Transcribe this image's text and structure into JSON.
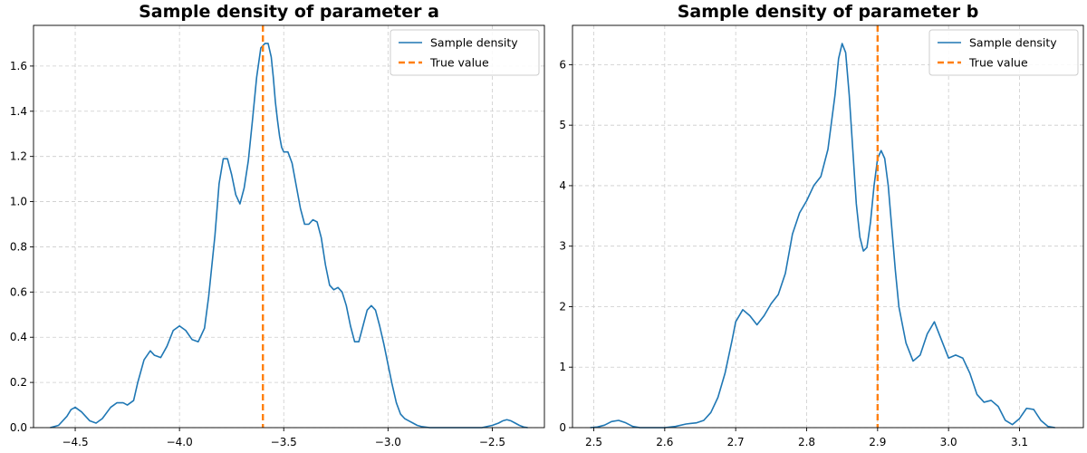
{
  "figure": {
    "background": "#ffffff"
  },
  "colors": {
    "density": "#1f77b4",
    "true_value": "#ff7f0e",
    "grid": "#cccccc",
    "axis": "#000000"
  },
  "chart_data": [
    {
      "type": "line",
      "title": "Sample density of parameter a",
      "xlabel": "",
      "ylabel": "",
      "xlim": [
        -4.7,
        -2.25
      ],
      "ylim": [
        0,
        1.78
      ],
      "xticks": [
        -4.5,
        -4.0,
        -3.5,
        -3.0,
        -2.5
      ],
      "xtick_labels": [
        "−4.5",
        "−4.0",
        "−3.5",
        "−3.0",
        "−2.5"
      ],
      "yticks": [
        0.0,
        0.2,
        0.4,
        0.6,
        0.8,
        1.0,
        1.2,
        1.4,
        1.6
      ],
      "ytick_labels": [
        "0.0",
        "0.2",
        "0.4",
        "0.6",
        "0.8",
        "1.0",
        "1.2",
        "1.4",
        "1.6"
      ],
      "grid": true,
      "legend": {
        "position": "top-right",
        "entries": [
          "Sample density",
          "True value"
        ]
      },
      "series": [
        {
          "name": "Sample density",
          "style": "solid",
          "x": [
            -4.62,
            -4.58,
            -4.54,
            -4.52,
            -4.5,
            -4.47,
            -4.43,
            -4.4,
            -4.37,
            -4.33,
            -4.3,
            -4.27,
            -4.25,
            -4.22,
            -4.2,
            -4.17,
            -4.14,
            -4.12,
            -4.09,
            -4.06,
            -4.03,
            -4.0,
            -3.97,
            -3.94,
            -3.91,
            -3.88,
            -3.86,
            -3.83,
            -3.81,
            -3.79,
            -3.77,
            -3.75,
            -3.73,
            -3.71,
            -3.69,
            -3.67,
            -3.65,
            -3.63,
            -3.61,
            -3.59,
            -3.575,
            -3.56,
            -3.55,
            -3.54,
            -3.53,
            -3.52,
            -3.51,
            -3.5,
            -3.49,
            -3.48,
            -3.46,
            -3.44,
            -3.42,
            -3.4,
            -3.38,
            -3.36,
            -3.34,
            -3.32,
            -3.3,
            -3.28,
            -3.26,
            -3.24,
            -3.22,
            -3.2,
            -3.18,
            -3.16,
            -3.14,
            -3.12,
            -3.1,
            -3.08,
            -3.06,
            -3.04,
            -3.02,
            -3.0,
            -2.98,
            -2.96,
            -2.94,
            -2.92,
            -2.9,
            -2.88,
            -2.86,
            -2.84,
            -2.8,
            -2.76,
            -2.72,
            -2.68,
            -2.64,
            -2.6,
            -2.55,
            -2.5,
            -2.47,
            -2.45,
            -2.43,
            -2.41,
            -2.39,
            -2.37,
            -2.35,
            -2.33
          ],
          "y": [
            0.0,
            0.01,
            0.05,
            0.08,
            0.09,
            0.07,
            0.03,
            0.02,
            0.04,
            0.09,
            0.11,
            0.11,
            0.1,
            0.12,
            0.2,
            0.3,
            0.34,
            0.32,
            0.31,
            0.36,
            0.43,
            0.45,
            0.43,
            0.39,
            0.38,
            0.44,
            0.58,
            0.85,
            1.08,
            1.19,
            1.19,
            1.12,
            1.03,
            0.99,
            1.06,
            1.18,
            1.36,
            1.55,
            1.68,
            1.7,
            1.7,
            1.64,
            1.55,
            1.44,
            1.36,
            1.29,
            1.24,
            1.22,
            1.22,
            1.22,
            1.17,
            1.07,
            0.97,
            0.9,
            0.9,
            0.92,
            0.91,
            0.84,
            0.72,
            0.63,
            0.61,
            0.62,
            0.6,
            0.54,
            0.45,
            0.38,
            0.38,
            0.45,
            0.52,
            0.54,
            0.52,
            0.45,
            0.37,
            0.28,
            0.19,
            0.11,
            0.06,
            0.04,
            0.03,
            0.02,
            0.01,
            0.005,
            0.0,
            0.0,
            0.0,
            0.0,
            0.0,
            0.0,
            0.0,
            0.01,
            0.02,
            0.03,
            0.035,
            0.03,
            0.02,
            0.01,
            0.003,
            0.0
          ]
        },
        {
          "name": "True value",
          "style": "dashed",
          "vline": -3.6
        }
      ]
    },
    {
      "type": "line",
      "title": "Sample density of parameter b",
      "xlabel": "",
      "ylabel": "",
      "xlim": [
        2.47,
        3.19
      ],
      "ylim": [
        0,
        6.65
      ],
      "xticks": [
        2.5,
        2.6,
        2.7,
        2.8,
        2.9,
        3.0,
        3.1
      ],
      "xtick_labels": [
        "2.5",
        "2.6",
        "2.7",
        "2.8",
        "2.9",
        "3.0",
        "3.1"
      ],
      "yticks": [
        0,
        1,
        2,
        3,
        4,
        5,
        6
      ],
      "ytick_labels": [
        "0",
        "1",
        "2",
        "3",
        "4",
        "5",
        "6"
      ],
      "grid": true,
      "legend": {
        "position": "top-right",
        "entries": [
          "Sample density",
          "True value"
        ]
      },
      "series": [
        {
          "name": "Sample density",
          "style": "solid",
          "x": [
            2.495,
            2.505,
            2.515,
            2.525,
            2.535,
            2.545,
            2.555,
            2.565,
            2.58,
            2.6,
            2.615,
            2.63,
            2.645,
            2.655,
            2.665,
            2.675,
            2.685,
            2.695,
            2.7,
            2.71,
            2.72,
            2.73,
            2.74,
            2.75,
            2.76,
            2.77,
            2.78,
            2.79,
            2.8,
            2.81,
            2.82,
            2.83,
            2.84,
            2.845,
            2.85,
            2.855,
            2.86,
            2.865,
            2.87,
            2.875,
            2.88,
            2.885,
            2.89,
            2.895,
            2.9,
            2.905,
            2.91,
            2.915,
            2.92,
            2.925,
            2.93,
            2.94,
            2.95,
            2.96,
            2.97,
            2.98,
            2.99,
            3.0,
            3.01,
            3.02,
            3.03,
            3.04,
            3.05,
            3.06,
            3.07,
            3.08,
            3.09,
            3.1,
            3.11,
            3.12,
            3.13,
            3.14,
            3.15
          ],
          "y": [
            0.0,
            0.01,
            0.04,
            0.1,
            0.12,
            0.08,
            0.02,
            0.0,
            0.0,
            0.0,
            0.02,
            0.06,
            0.08,
            0.12,
            0.25,
            0.5,
            0.9,
            1.45,
            1.75,
            1.95,
            1.85,
            1.7,
            1.85,
            2.05,
            2.2,
            2.55,
            3.2,
            3.55,
            3.75,
            4.0,
            4.15,
            4.6,
            5.5,
            6.1,
            6.35,
            6.2,
            5.5,
            4.6,
            3.7,
            3.15,
            2.92,
            2.98,
            3.4,
            4.0,
            4.45,
            4.58,
            4.45,
            4.0,
            3.3,
            2.6,
            2.0,
            1.4,
            1.1,
            1.2,
            1.55,
            1.75,
            1.45,
            1.15,
            1.2,
            1.15,
            0.9,
            0.55,
            0.42,
            0.45,
            0.35,
            0.12,
            0.05,
            0.15,
            0.32,
            0.3,
            0.12,
            0.02,
            0.0
          ]
        },
        {
          "name": "True value",
          "style": "dashed",
          "vline": 2.9
        }
      ]
    }
  ]
}
